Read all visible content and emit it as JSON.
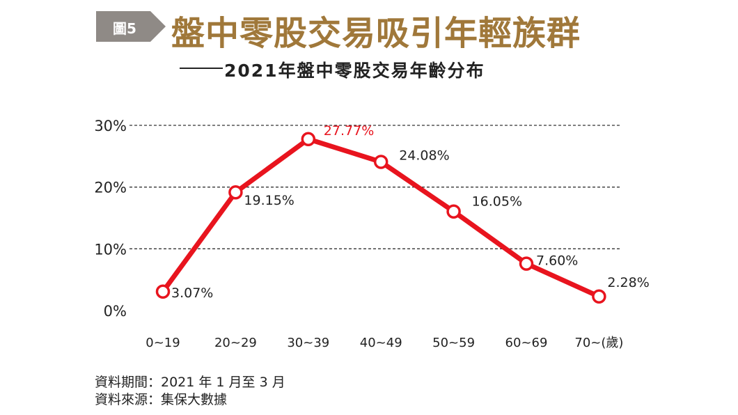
{
  "figure_label": "圖5",
  "title": "盤中零股交易吸引年輕族群",
  "subtitle": "2021年盤中零股交易年齡分布",
  "chart_data": {
    "type": "line",
    "categories": [
      "0~19",
      "20~29",
      "30~39",
      "40~49",
      "50~59",
      "60~69",
      "70~(歲)"
    ],
    "values": [
      3.07,
      19.15,
      27.77,
      24.08,
      16.05,
      7.6,
      2.28
    ],
    "data_labels": [
      "3.07%",
      "19.15%",
      "27.77%",
      "24.08%",
      "16.05%",
      "7.60%",
      "2.28%"
    ],
    "y_ticks": [
      0,
      10,
      20,
      30
    ],
    "y_tick_labels": [
      "0%",
      "10%",
      "20%",
      "30%"
    ],
    "ylim": [
      0,
      30
    ],
    "grid": "dashed horizontal",
    "line_color": "#e8141e",
    "highlight_label_color": "#e8141e",
    "highlight_index": 2
  },
  "notes": {
    "period": "資料期間：2021 年 1 月至 3 月",
    "source": "資料來源：集保大數據"
  }
}
